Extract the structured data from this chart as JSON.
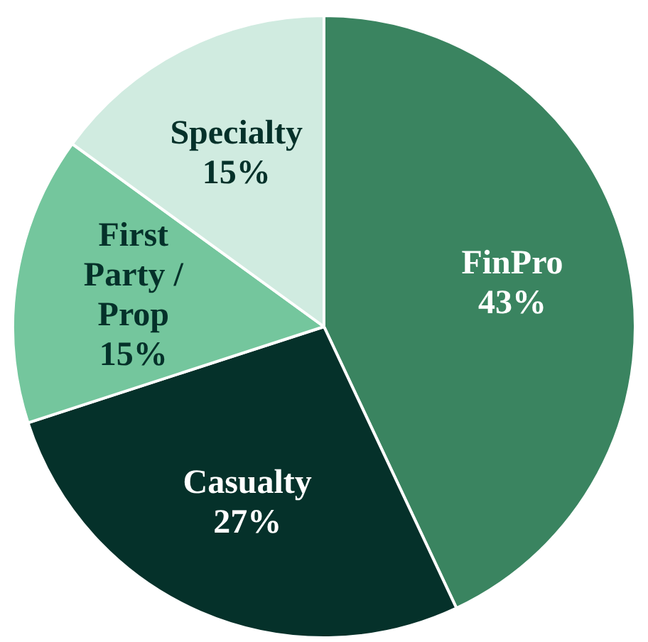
{
  "chart_data": {
    "type": "pie",
    "categories": [
      "FinPro",
      "Casualty",
      "First Party / Prop",
      "Specialty"
    ],
    "values": [
      43,
      27,
      15,
      15
    ],
    "colors": [
      "#3a8460",
      "#05312a",
      "#74c69d",
      "#d0ebe0"
    ],
    "value_labels": [
      "43%",
      "27%",
      "15%",
      "15%"
    ],
    "legend": false
  }
}
